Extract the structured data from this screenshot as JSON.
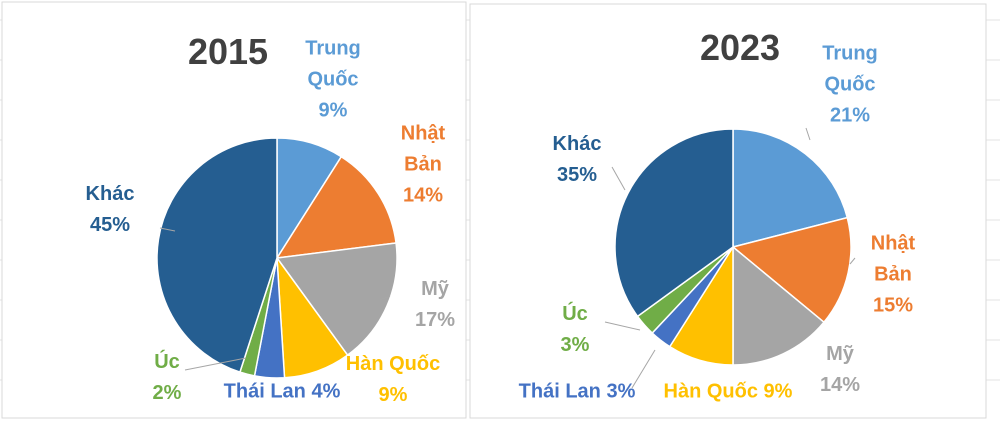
{
  "chart_data": [
    {
      "type": "pie",
      "title": "2015",
      "categories": [
        "Trung Quốc",
        "Nhật Bản",
        "Mỹ",
        "Hàn Quốc",
        "Thái Lan",
        "Úc",
        "Khác"
      ],
      "values": [
        9,
        14,
        17,
        9,
        4,
        2,
        45
      ],
      "value_labels": [
        "9%",
        "14%",
        "17%",
        "9%",
        "4%",
        "2%",
        "45%"
      ],
      "colors": [
        "#5b9bd5",
        "#ed7d31",
        "#a5a5a5",
        "#ffc000",
        "#4472c4",
        "#70ad47",
        "#255e91"
      ]
    },
    {
      "type": "pie",
      "title": "2023",
      "categories": [
        "Trung Quốc",
        "Nhật Bản",
        "Mỹ",
        "Hàn Quốc",
        "Thái Lan",
        "Úc",
        "Khác"
      ],
      "values": [
        21,
        15,
        14,
        9,
        3,
        3,
        35
      ],
      "value_labels": [
        "21%",
        "15%",
        "14%",
        "9%",
        "3%",
        "3%",
        "35%"
      ],
      "colors": [
        "#5b9bd5",
        "#ed7d31",
        "#a5a5a5",
        "#ffc000",
        "#4472c4",
        "#70ad47",
        "#255e91"
      ]
    }
  ]
}
